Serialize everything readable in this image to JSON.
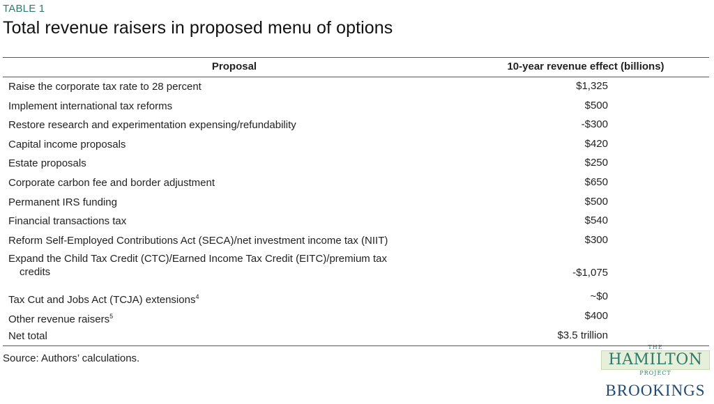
{
  "table_label": "TABLE 1",
  "title": "Total revenue raisers in proposed menu of options",
  "header": {
    "proposal": "Proposal",
    "effect": "10-year revenue effect (billions)"
  },
  "rows": [
    {
      "proposal": "Raise the corporate tax rate to 28 percent",
      "effect": "$1,325"
    },
    {
      "proposal": "Implement international tax reforms",
      "effect": "$500"
    },
    {
      "proposal": "Restore research and experimentation expensing/refundability",
      "effect": "-$300"
    },
    {
      "proposal": "Capital income proposals",
      "effect": "$420"
    },
    {
      "proposal": "Estate proposals",
      "effect": "$250"
    },
    {
      "proposal": "Corporate carbon fee and border adjustment",
      "effect": "$650"
    },
    {
      "proposal": "Permanent IRS funding",
      "effect": "$500"
    },
    {
      "proposal": "Financial transactions tax",
      "effect": "$540"
    },
    {
      "proposal": "Reform Self-Employed Contributions Act (SECA)/net investment income tax (NIIT)",
      "effect": "$300"
    },
    {
      "proposal_line1": "Expand the Child Tax Credit (CTC)/Earned Income Tax Credit (EITC)/premium tax",
      "proposal_line2": "credits",
      "effect": "-$1,075"
    },
    {
      "proposal": "Tax Cut and Jobs Act (TCJA) extensions",
      "sup": "4",
      "effect": "~$0"
    },
    {
      "proposal": "Other revenue raisers",
      "sup": "5",
      "effect": "$400"
    },
    {
      "proposal": "Net total",
      "effect": "$3.5 trillion"
    }
  ],
  "source": "Source: Authors’ calculations.",
  "logos": {
    "hamilton_the": "THE",
    "hamilton_word": "HAMILTON",
    "hamilton_project": "PROJECT",
    "brookings": "BROOKINGS"
  }
}
